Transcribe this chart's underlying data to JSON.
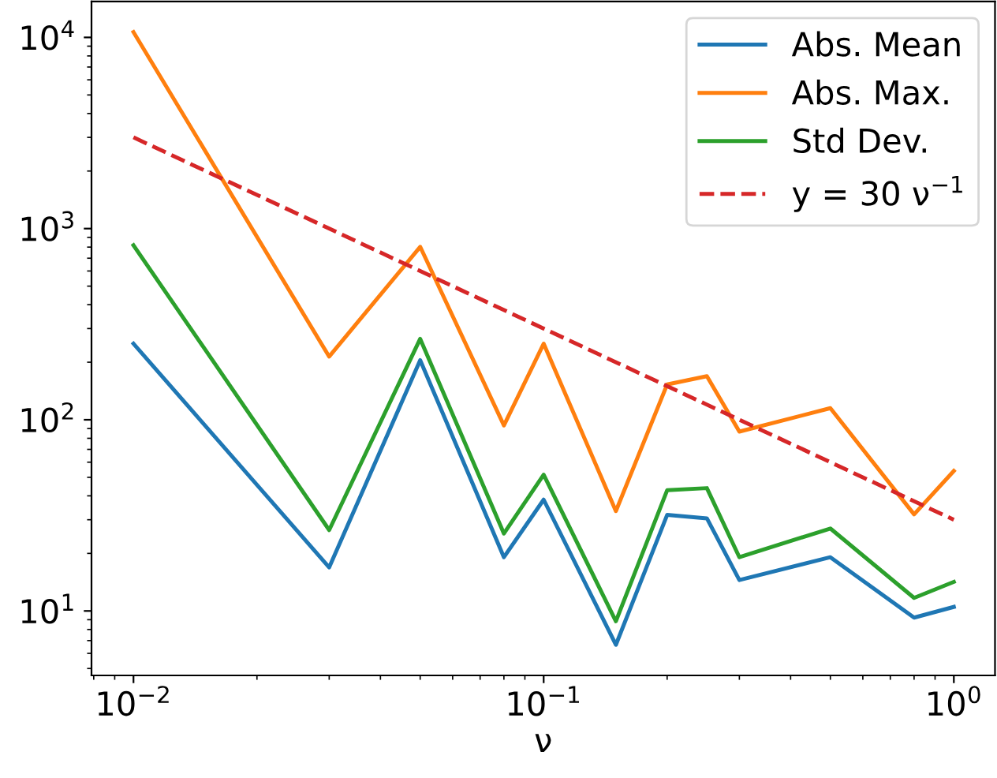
{
  "chart_data": {
    "type": "line",
    "xlabel": "ν",
    "log": "xy",
    "x": [
      0.01,
      0.03,
      0.05,
      0.08,
      0.1,
      0.15,
      0.2,
      0.25,
      0.3,
      0.5,
      0.8,
      1.0
    ],
    "series": [
      {
        "name": "Abs. Mean",
        "color": "#1f77b4",
        "values": [
          250,
          16.9,
          205,
          19.1,
          38.2,
          6.65,
          31.8,
          30.5,
          14.5,
          19.1,
          9.23,
          10.5
        ]
      },
      {
        "name": "Abs. Max.",
        "color": "#ff7f0e",
        "values": [
          10660,
          214,
          803,
          93.4,
          250,
          33.3,
          153,
          169,
          86.7,
          115,
          32,
          54
        ]
      },
      {
        "name": "Std Dev.",
        "color": "#2ca02c",
        "values": [
          818,
          26.5,
          265,
          25.4,
          51.6,
          8.83,
          42.8,
          43.9,
          19.1,
          27.0,
          11.7,
          14.2
        ]
      },
      {
        "name": "y = 30 ν$^{−1}$",
        "color": "#d62728",
        "line_style": "dashed",
        "x": [
          0.01,
          1.0
        ],
        "values": [
          3000,
          30
        ]
      }
    ],
    "xlim": [
      0.0079,
      1.26
    ],
    "ylim": [
      4.6,
      15400
    ],
    "xticks": [
      {
        "value": 0.01,
        "label": "10$^{−2}$"
      },
      {
        "value": 0.1,
        "label": "10$^{−1}$"
      },
      {
        "value": 1,
        "label": "10$^{0}$"
      }
    ],
    "yticks": [
      {
        "value": 10,
        "label": "10$^{1}$"
      },
      {
        "value": 100,
        "label": "10$^{2}$"
      },
      {
        "value": 1000,
        "label": "10$^{3}$"
      },
      {
        "value": 10000,
        "label": "10$^{4}$"
      }
    ],
    "grid": false,
    "legend": "top right"
  }
}
